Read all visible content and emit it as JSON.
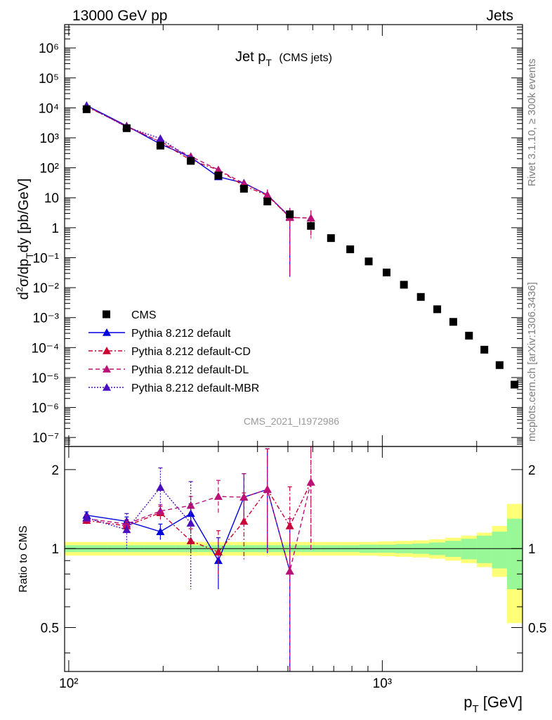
{
  "header": {
    "left": "13000 GeV pp",
    "right": "Jets"
  },
  "side": {
    "rivet": "Rivet 3.1.10, ≥ 300k events",
    "mcplots": "mcplots.cern.ch [arXiv:1306.3436]"
  },
  "watermark": "CMS_2021_I1972986",
  "chart_data": {
    "type": "scatter",
    "title": "Jet p_T (CMS jets)",
    "xlabel": "p_T [GeV]",
    "ylabel": "d²σ/dp_T dy [pb/GeV]",
    "ratio_ylabel": "Ratio to CMS",
    "xscale": "log",
    "yscale": "log",
    "xlim": [
      97,
      2800
    ],
    "ylim": [
      5e-08,
      6000000.0
    ],
    "ratio_ylim": [
      0.34,
      2.45
    ],
    "x_tick_labels": [
      "10²",
      "10³"
    ],
    "y_tick_labels": [
      "10⁻⁷",
      "10⁻⁶",
      "10⁻⁵",
      "10⁻⁴",
      "10⁻³",
      "10⁻²",
      "10⁻¹",
      "1",
      "10",
      "10²",
      "10³",
      "10⁴",
      "10⁵",
      "10⁶"
    ],
    "ratio_tick_labels": [
      "0.5",
      "1",
      "2"
    ],
    "legend_position": "bottom-left",
    "data": {
      "name": "CMS",
      "x": [
        114,
        153,
        196,
        245,
        300,
        362,
        430,
        507,
        592,
        686,
        790,
        905,
        1032,
        1172,
        1327,
        1497,
        1684,
        1890,
        2116,
        2366,
        2640
      ],
      "y": [
        9000,
        2100,
        550,
        170,
        55,
        20,
        7.5,
        2.8,
        1.15,
        0.45,
        0.19,
        0.075,
        0.032,
        0.0125,
        0.0049,
        0.0019,
        0.00072,
        0.00025,
        8.5e-05,
        2.6e-05,
        5.8e-06
      ]
    },
    "uncertainty_bands": {
      "x_edges": [
        97,
        133,
        174,
        220,
        272,
        330,
        395,
        468,
        548,
        638,
        737,
        846,
        967,
        1101,
        1248,
        1410,
        1588,
        1784,
        2000,
        2238,
        2500,
        2800
      ],
      "stat_sys_half_width": [
        0.06,
        0.06,
        0.06,
        0.06,
        0.06,
        0.06,
        0.06,
        0.06,
        0.06,
        0.06,
        0.06,
        0.06,
        0.065,
        0.07,
        0.075,
        0.085,
        0.1,
        0.12,
        0.15,
        0.22,
        0.48
      ],
      "stat_half_width": [
        0.03,
        0.03,
        0.03,
        0.03,
        0.03,
        0.03,
        0.03,
        0.03,
        0.03,
        0.03,
        0.03,
        0.035,
        0.035,
        0.04,
        0.045,
        0.055,
        0.07,
        0.09,
        0.12,
        0.16,
        0.3
      ],
      "colors": {
        "outer": "#ffff77",
        "inner": "#98f898"
      }
    },
    "series": [
      {
        "name": "Pythia 8.212 default",
        "color": "#0000dd",
        "dash": "solid",
        "marker": "triangle",
        "x": [
          114,
          153,
          196,
          245,
          300,
          362,
          430,
          507
        ],
        "y": [
          12000,
          2500,
          620,
          225,
          50,
          31,
          12.5,
          2.3
        ],
        "yerr": [
          0.04,
          0.05,
          0.07,
          0.1,
          0.2,
          0.3,
          0.5,
          0.99
        ],
        "ratio": [
          1.34,
          1.27,
          1.16,
          1.36,
          0.9,
          1.57,
          1.68,
          0.82
        ],
        "ratio_err": [
          0.04,
          0.05,
          0.08,
          0.12,
          0.2,
          0.36,
          0.72,
          0.48
        ]
      },
      {
        "name": "Pythia 8.212 default-CD",
        "color": "#cc0033",
        "dash": "6,3,2,3",
        "marker": "triangle",
        "x": [
          114,
          153,
          196,
          245,
          300,
          362,
          430,
          507,
          592
        ],
        "y": [
          11000,
          2450,
          730,
          180,
          85,
          25,
          12,
          2.2,
          2.1
        ],
        "yerr": [
          0.04,
          0.05,
          0.07,
          0.1,
          0.2,
          0.3,
          0.5,
          0.99,
          0.8
        ],
        "ratio": [
          1.28,
          1.22,
          1.37,
          1.07,
          0.97,
          1.27,
          1.68,
          1.22,
          1.79
        ],
        "ratio_err": [
          0.04,
          0.05,
          0.08,
          0.12,
          0.2,
          0.36,
          0.72,
          0.5,
          0.8
        ]
      },
      {
        "name": "Pythia 8.212 default-DL",
        "color": "#bb1177",
        "dash": "6,4",
        "marker": "triangle",
        "x": [
          114,
          153,
          196,
          245,
          300,
          362,
          430,
          507,
          592
        ],
        "y": [
          11500,
          2350,
          750,
          240,
          85,
          30,
          12.5,
          2.2,
          2.1
        ],
        "yerr": [
          0.04,
          0.05,
          0.07,
          0.1,
          0.2,
          0.3,
          0.5,
          0.99,
          0.8
        ],
        "ratio": [
          1.3,
          1.24,
          1.39,
          1.46,
          1.58,
          1.57,
          1.68,
          0.82,
          1.79
        ],
        "ratio_err": [
          0.04,
          0.05,
          0.08,
          0.12,
          0.24,
          0.36,
          0.72,
          0.48,
          0.8
        ]
      },
      {
        "name": "Pythia 8.212 default-MBR",
        "color": "#4b0fbf",
        "dash": "2,2",
        "marker": "triangle",
        "x": [
          114,
          153,
          196,
          245
        ],
        "y": [
          11800,
          2300,
          950,
          200
        ],
        "yerr": [
          0.04,
          0.05,
          0.1,
          0.3
        ],
        "ratio": [
          1.31,
          1.18,
          1.71,
          1.25
        ],
        "ratio_err": [
          0.04,
          0.18,
          0.32,
          0.55
        ]
      }
    ]
  }
}
